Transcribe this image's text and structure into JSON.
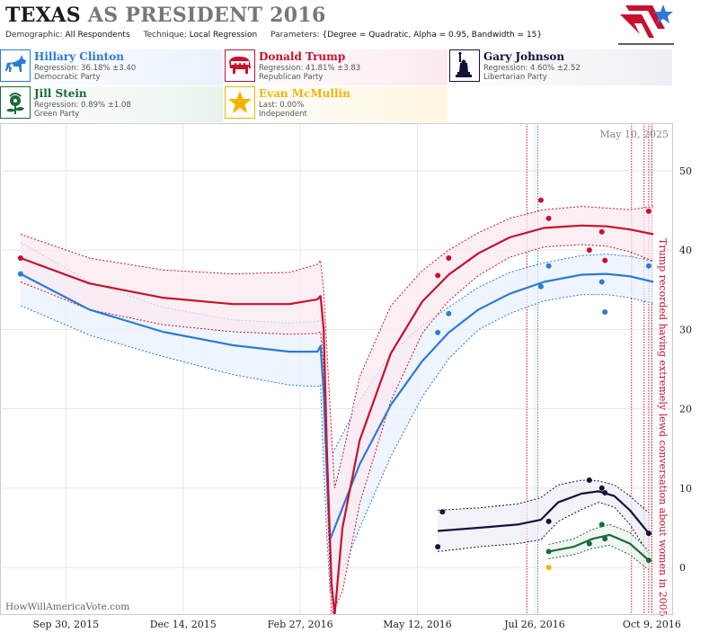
{
  "header": {
    "title_state": "TEXAS",
    "title_rest": " AS PRESIDENT 2016",
    "demographic_label": "Demographic:",
    "demographic_value": "All Respondents",
    "technique_label": "Technique:",
    "technique_value": "Local Regression",
    "parameters_label": "Parameters:",
    "parameters_value": "{Degree = Quadratic, Alpha = 0.95, Bandwidth = 15}"
  },
  "candidates": [
    {
      "name": "Hillary Clinton",
      "line2": "Regression: 36.18% ±3.40",
      "line3": "Democratic Party",
      "color": "#2b7bd6",
      "icon": "donkey-icon"
    },
    {
      "name": "Donald Trump",
      "line2": "Regression: 41.81% ±3.83",
      "line3": "Republican Party",
      "color": "#c8102e",
      "icon": "elephant-icon"
    },
    {
      "name": "Gary Johnson",
      "line2": "Regression: 4.60% ±2.52",
      "line3": "Libertarian Party",
      "color": "#12123d",
      "icon": "liberty-statue-icon"
    },
    {
      "name": "Jill Stein",
      "line2": "Regression: 0.89% ±1.08",
      "line3": "Green Party",
      "color": "#1a6b3a",
      "icon": "flower-icon"
    },
    {
      "name": "Evan McMullin",
      "line2": "Last: 0.00%",
      "line3": "Independent",
      "color": "#f5b400",
      "icon": "star-icon"
    }
  ],
  "chart_data": {
    "type": "line",
    "date_label": "May 10, 2025",
    "watermark": "HowWillAmericaVote.com",
    "annotation": "Trump recorded having extremely lewd conversation about women in 2005",
    "x_ticks": [
      "Sep 30, 2015",
      "Dec 14, 2015",
      "Feb 27, 2016",
      "May 12, 2016",
      "Jul 26, 2016",
      "Oct 9, 2016"
    ],
    "y_ticks": [
      0,
      10,
      20,
      30,
      40,
      50
    ],
    "ylim": [
      -6,
      56
    ],
    "xlim": [
      "2015-08-20",
      "2016-10-22"
    ],
    "series": [
      {
        "name": "Hillary Clinton",
        "color": "#2b7bd6",
        "band_color": "#eaf2fc",
        "trend": [
          [
            "2015-09-01",
            37.0
          ],
          [
            "2015-10-15",
            32.5
          ],
          [
            "2015-12-01",
            29.7
          ],
          [
            "2016-01-15",
            28.0
          ],
          [
            "2016-02-20",
            27.2
          ],
          [
            "2016-03-09",
            27.2
          ],
          [
            "2016-03-11",
            27.9
          ],
          [
            "2016-03-13",
            22
          ],
          [
            "2016-03-15",
            12
          ],
          [
            "2016-03-17",
            3.5
          ],
          [
            "2016-03-22",
            6
          ],
          [
            "2016-04-05",
            13
          ],
          [
            "2016-04-25",
            20.5
          ],
          [
            "2016-05-15",
            26
          ],
          [
            "2016-06-01",
            29.6
          ],
          [
            "2016-06-20",
            32.5
          ],
          [
            "2016-07-10",
            34.5
          ],
          [
            "2016-08-01",
            36.0
          ],
          [
            "2016-08-25",
            36.9
          ],
          [
            "2016-09-10",
            37.0
          ],
          [
            "2016-09-25",
            36.7
          ],
          [
            "2016-10-10",
            36.0
          ]
        ],
        "upper": [
          [
            "2015-09-01",
            41
          ],
          [
            "2015-10-15",
            36
          ],
          [
            "2015-12-01",
            32.8
          ],
          [
            "2016-01-15",
            31.2
          ],
          [
            "2016-02-20",
            30.8
          ],
          [
            "2016-03-09",
            31
          ],
          [
            "2016-03-11",
            31.5
          ],
          [
            "2016-03-13",
            27
          ],
          [
            "2016-03-16",
            17
          ],
          [
            "2016-03-19",
            14.5
          ],
          [
            "2016-04-05",
            21
          ],
          [
            "2016-04-25",
            27
          ],
          [
            "2016-05-15",
            30.5
          ],
          [
            "2016-06-01",
            32.8
          ],
          [
            "2016-06-20",
            35.3
          ],
          [
            "2016-07-10",
            37.2
          ],
          [
            "2016-08-01",
            38.4
          ],
          [
            "2016-08-25",
            39.3
          ],
          [
            "2016-09-10",
            39.5
          ],
          [
            "2016-09-25",
            39.2
          ],
          [
            "2016-10-10",
            38.6
          ]
        ],
        "lower": [
          [
            "2015-09-01",
            33
          ],
          [
            "2015-10-15",
            29.3
          ],
          [
            "2015-12-01",
            26.6
          ],
          [
            "2016-01-15",
            24.3
          ],
          [
            "2016-02-20",
            23
          ],
          [
            "2016-03-09",
            22.8
          ],
          [
            "2016-03-11",
            23
          ],
          [
            "2016-03-13",
            13
          ],
          [
            "2016-03-15",
            4
          ],
          [
            "2016-03-17",
            -3
          ],
          [
            "2016-03-24",
            -1
          ],
          [
            "2016-04-05",
            5
          ],
          [
            "2016-04-25",
            14
          ],
          [
            "2016-05-15",
            21.5
          ],
          [
            "2016-06-01",
            26.3
          ],
          [
            "2016-06-20",
            30
          ],
          [
            "2016-07-10",
            32
          ],
          [
            "2016-08-01",
            33.6
          ],
          [
            "2016-08-25",
            34.4
          ],
          [
            "2016-09-10",
            34.4
          ],
          [
            "2016-09-25",
            34
          ],
          [
            "2016-10-10",
            33.3
          ]
        ],
        "points": [
          [
            "2015-09-01",
            37.0
          ],
          [
            "2016-05-25",
            29.6
          ],
          [
            "2016-06-01",
            32.0
          ],
          [
            "2016-07-30",
            35.4
          ],
          [
            "2016-08-04",
            38.0
          ],
          [
            "2016-09-07",
            36.0
          ],
          [
            "2016-09-09",
            32.2
          ],
          [
            "2016-10-07",
            38.0
          ]
        ]
      },
      {
        "name": "Donald Trump",
        "color": "#c8102e",
        "band_color": "#fbeaf0",
        "trend": [
          [
            "2015-09-01",
            39.0
          ],
          [
            "2015-10-15",
            35.8
          ],
          [
            "2015-12-01",
            34.0
          ],
          [
            "2016-01-15",
            33.2
          ],
          [
            "2016-02-20",
            33.2
          ],
          [
            "2016-03-09",
            33.8
          ],
          [
            "2016-03-11",
            34.2
          ],
          [
            "2016-03-13",
            30
          ],
          [
            "2016-03-15",
            15
          ],
          [
            "2016-03-18",
            -2
          ],
          [
            "2016-03-20",
            -6
          ],
          [
            "2016-03-25",
            5
          ],
          [
            "2016-04-05",
            16
          ],
          [
            "2016-04-25",
            27
          ],
          [
            "2016-05-15",
            33.5
          ],
          [
            "2016-06-01",
            36.9
          ],
          [
            "2016-06-20",
            39.6
          ],
          [
            "2016-07-10",
            41.6
          ],
          [
            "2016-08-01",
            42.8
          ],
          [
            "2016-08-25",
            43.1
          ],
          [
            "2016-09-10",
            43.0
          ],
          [
            "2016-09-25",
            42.6
          ],
          [
            "2016-10-10",
            42.0
          ]
        ],
        "upper": [
          [
            "2015-09-01",
            42
          ],
          [
            "2015-10-15",
            39
          ],
          [
            "2015-12-01",
            37.5
          ],
          [
            "2016-01-15",
            37
          ],
          [
            "2016-02-20",
            37.2
          ],
          [
            "2016-03-09",
            38.2
          ],
          [
            "2016-03-11",
            38.7
          ],
          [
            "2016-03-13",
            35
          ],
          [
            "2016-03-16",
            24
          ],
          [
            "2016-03-20",
            10
          ],
          [
            "2016-03-25",
            14
          ],
          [
            "2016-04-05",
            24
          ],
          [
            "2016-04-25",
            33
          ],
          [
            "2016-05-15",
            37.4
          ],
          [
            "2016-06-01",
            40
          ],
          [
            "2016-06-20",
            42.2
          ],
          [
            "2016-07-10",
            44
          ],
          [
            "2016-08-01",
            45.1
          ],
          [
            "2016-08-25",
            45.5
          ],
          [
            "2016-09-10",
            45.3
          ],
          [
            "2016-09-25",
            45.1
          ],
          [
            "2016-10-10",
            45.5
          ]
        ],
        "lower": [
          [
            "2015-09-01",
            36
          ],
          [
            "2015-10-15",
            32.5
          ],
          [
            "2015-12-01",
            30.6
          ],
          [
            "2016-01-15",
            29.7
          ],
          [
            "2016-02-20",
            29.4
          ],
          [
            "2016-03-09",
            29.5
          ],
          [
            "2016-03-11",
            29.7
          ],
          [
            "2016-03-13",
            25
          ],
          [
            "2016-03-15",
            10
          ],
          [
            "2016-03-18",
            -6
          ],
          [
            "2016-03-25",
            -3
          ],
          [
            "2016-04-05",
            8
          ],
          [
            "2016-04-25",
            21
          ],
          [
            "2016-05-15",
            29.5
          ],
          [
            "2016-06-01",
            33.6
          ],
          [
            "2016-06-20",
            36.8
          ],
          [
            "2016-07-10",
            39.1
          ],
          [
            "2016-08-01",
            40.4
          ],
          [
            "2016-08-25",
            40.7
          ],
          [
            "2016-09-10",
            40.5
          ],
          [
            "2016-09-25",
            39.8
          ],
          [
            "2016-10-10",
            38.6
          ]
        ],
        "points": [
          [
            "2015-09-01",
            39.0
          ],
          [
            "2016-05-25",
            36.8
          ],
          [
            "2016-06-01",
            39.0
          ],
          [
            "2016-07-30",
            46.3
          ],
          [
            "2016-08-04",
            44.0
          ],
          [
            "2016-08-30",
            40.0
          ],
          [
            "2016-09-07",
            42.3
          ],
          [
            "2016-09-09",
            38.7
          ],
          [
            "2016-10-07",
            44.9
          ]
        ]
      },
      {
        "name": "Gary Johnson",
        "color": "#12123d",
        "band_color": "#eeeef5",
        "trend": [
          [
            "2016-05-25",
            4.6
          ],
          [
            "2016-06-20",
            5.0
          ],
          [
            "2016-07-15",
            5.4
          ],
          [
            "2016-07-30",
            6.0
          ],
          [
            "2016-08-10",
            8.2
          ],
          [
            "2016-08-25",
            9.3
          ],
          [
            "2016-09-05",
            9.6
          ],
          [
            "2016-09-15",
            9.0
          ],
          [
            "2016-09-25",
            7.2
          ],
          [
            "2016-10-07",
            4.3
          ]
        ],
        "upper": [
          [
            "2016-05-25",
            7.2
          ],
          [
            "2016-06-20",
            7.5
          ],
          [
            "2016-07-15",
            8.0
          ],
          [
            "2016-07-30",
            8.8
          ],
          [
            "2016-08-10",
            10.4
          ],
          [
            "2016-08-25",
            11.0
          ],
          [
            "2016-09-05",
            10.9
          ],
          [
            "2016-09-15",
            10.4
          ],
          [
            "2016-09-25",
            9.0
          ],
          [
            "2016-10-07",
            6.9
          ]
        ],
        "lower": [
          [
            "2016-05-25",
            2.0
          ],
          [
            "2016-06-20",
            2.6
          ],
          [
            "2016-07-15",
            3.0
          ],
          [
            "2016-07-30",
            3.5
          ],
          [
            "2016-08-10",
            5.8
          ],
          [
            "2016-08-25",
            7.3
          ],
          [
            "2016-09-05",
            8.2
          ],
          [
            "2016-09-15",
            7.6
          ],
          [
            "2016-09-25",
            5.4
          ],
          [
            "2016-10-07",
            1.7
          ]
        ],
        "points": [
          [
            "2016-05-25",
            2.6
          ],
          [
            "2016-05-28",
            7.0
          ],
          [
            "2016-08-04",
            5.8
          ],
          [
            "2016-08-30",
            11.0
          ],
          [
            "2016-09-07",
            10.0
          ],
          [
            "2016-09-09",
            9.4
          ],
          [
            "2016-10-07",
            4.3
          ]
        ]
      },
      {
        "name": "Jill Stein",
        "color": "#1a6b3a",
        "band_color": "#e9f3ec",
        "trend": [
          [
            "2016-08-04",
            2.0
          ],
          [
            "2016-08-20",
            2.6
          ],
          [
            "2016-09-01",
            3.6
          ],
          [
            "2016-09-12",
            4.1
          ],
          [
            "2016-09-25",
            3.0
          ],
          [
            "2016-10-07",
            0.9
          ]
        ],
        "upper": [
          [
            "2016-08-04",
            2.9
          ],
          [
            "2016-08-20",
            3.6
          ],
          [
            "2016-09-01",
            4.8
          ],
          [
            "2016-09-12",
            5.4
          ],
          [
            "2016-09-25",
            4.4
          ],
          [
            "2016-10-07",
            2.1
          ]
        ],
        "lower": [
          [
            "2016-08-04",
            1.1
          ],
          [
            "2016-08-20",
            1.6
          ],
          [
            "2016-09-01",
            2.4
          ],
          [
            "2016-09-12",
            2.8
          ],
          [
            "2016-09-25",
            1.6
          ],
          [
            "2016-10-07",
            -0.3
          ]
        ],
        "points": [
          [
            "2016-08-04",
            2.0
          ],
          [
            "2016-08-30",
            3.0
          ],
          [
            "2016-09-07",
            5.4
          ],
          [
            "2016-09-09",
            3.6
          ],
          [
            "2016-10-07",
            0.9
          ]
        ]
      },
      {
        "name": "Evan McMullin",
        "color": "#f5b400",
        "points": [
          [
            "2016-08-04",
            0.0
          ]
        ]
      }
    ],
    "event_lines": [
      {
        "date": "2016-07-21",
        "color": "#c8102e"
      },
      {
        "date": "2016-07-28",
        "color": "#2b7bd6"
      },
      {
        "date": "2016-09-26",
        "color": "#c8102e"
      },
      {
        "date": "2016-10-04",
        "color": "#c8102e"
      },
      {
        "date": "2016-10-07",
        "color": "#c8102e"
      },
      {
        "date": "2016-10-09",
        "color": "#c8102e"
      }
    ]
  }
}
